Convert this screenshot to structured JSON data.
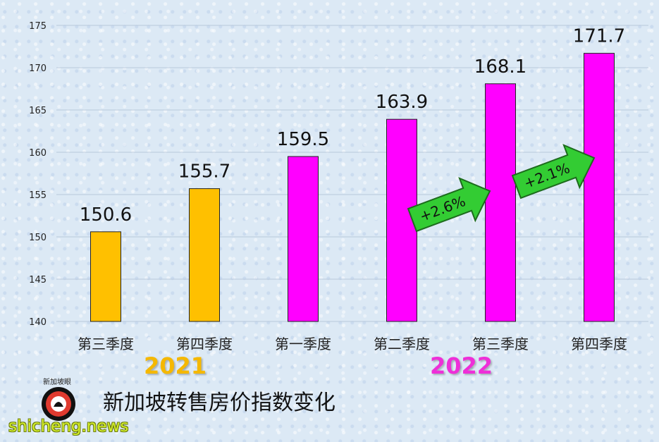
{
  "chart_data": {
    "type": "bar",
    "categories": [
      "第三季度",
      "第四季度",
      "第一季度",
      "第二季度",
      "第三季度",
      "第四季度"
    ],
    "values": [
      150.6,
      155.7,
      159.5,
      163.9,
      168.1,
      171.7
    ],
    "data_labels": [
      "150.6",
      "155.7",
      "159.5",
      "163.9",
      "168.1",
      "171.7"
    ],
    "bar_colors": [
      "#ffc000",
      "#ffc000",
      "#ff00ff",
      "#ff00ff",
      "#ff00ff",
      "#ff00ff"
    ],
    "title": "新加坡转售房价指数变化",
    "xlabel": "",
    "ylabel": "",
    "ylim": [
      140,
      175
    ],
    "yticks": [
      140,
      145,
      150,
      155,
      160,
      165,
      170,
      175
    ],
    "grid": true,
    "groups": [
      {
        "label": "2021",
        "color": "#f5b800"
      },
      {
        "label": "2022",
        "color": "#ee2fd8"
      }
    ],
    "annotations": [
      {
        "text": "+2.6%",
        "color": "#33cc33"
      },
      {
        "text": "+2.1%",
        "color": "#33cc33"
      }
    ]
  },
  "logo_text": "新加坡眼",
  "site_text": "shicheng.news"
}
